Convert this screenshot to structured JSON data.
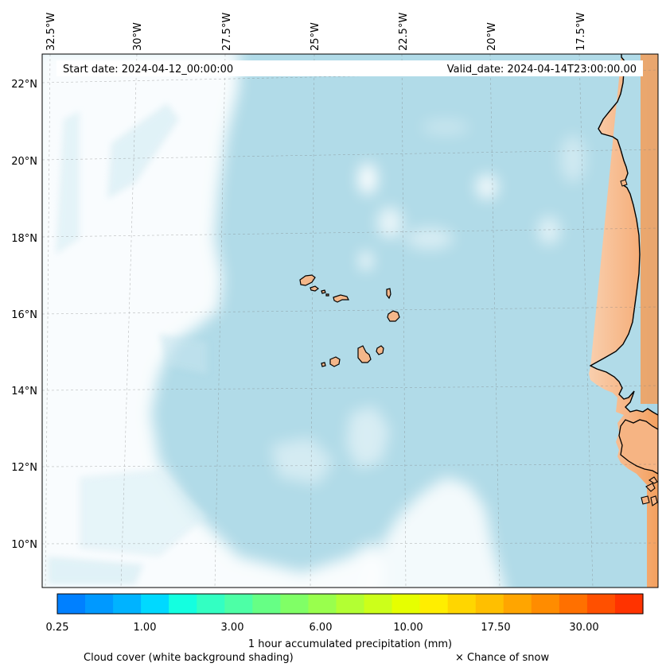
{
  "map": {
    "start_date_text": "Start date: 2024-04-12_00:00:00",
    "valid_date_text": "Valid_date: 2024-04-14T23:00:00.00",
    "lon_labels": [
      "32.5°W",
      "30°W",
      "27.5°W",
      "25°W",
      "22.5°W",
      "20°W",
      "17.5°W"
    ],
    "lat_labels": [
      "22°N",
      "20°N",
      "18°N",
      "16°N",
      "14°N",
      "12°N",
      "10°N"
    ],
    "colors": {
      "ocean_cloud": "#add8e6",
      "land": "#f5b98a",
      "land_dark": "#f4a05e",
      "coast": "#000000"
    }
  },
  "colorbar": {
    "tick_labels": [
      "0.25",
      "1.00",
      "3.00",
      "6.00",
      "10.00",
      "17.50",
      "30.00"
    ],
    "colors": [
      "#0080ff",
      "#0099ff",
      "#00b3ff",
      "#00d9ff",
      "#14ffe0",
      "#33ffc2",
      "#4dffa6",
      "#66ff85",
      "#80ff66",
      "#99ff4d",
      "#b3ff33",
      "#ccff1a",
      "#e6ff00",
      "#ffee00",
      "#ffd600",
      "#ffbf00",
      "#ffa500",
      "#ff8c00",
      "#ff7000",
      "#ff5000",
      "#ff3300"
    ],
    "label": "1 hour accumulated precipitation (mm)"
  },
  "legend": {
    "cloud_cover": "Cloud cover (white background shading)",
    "snow": "× Chance of snow"
  }
}
